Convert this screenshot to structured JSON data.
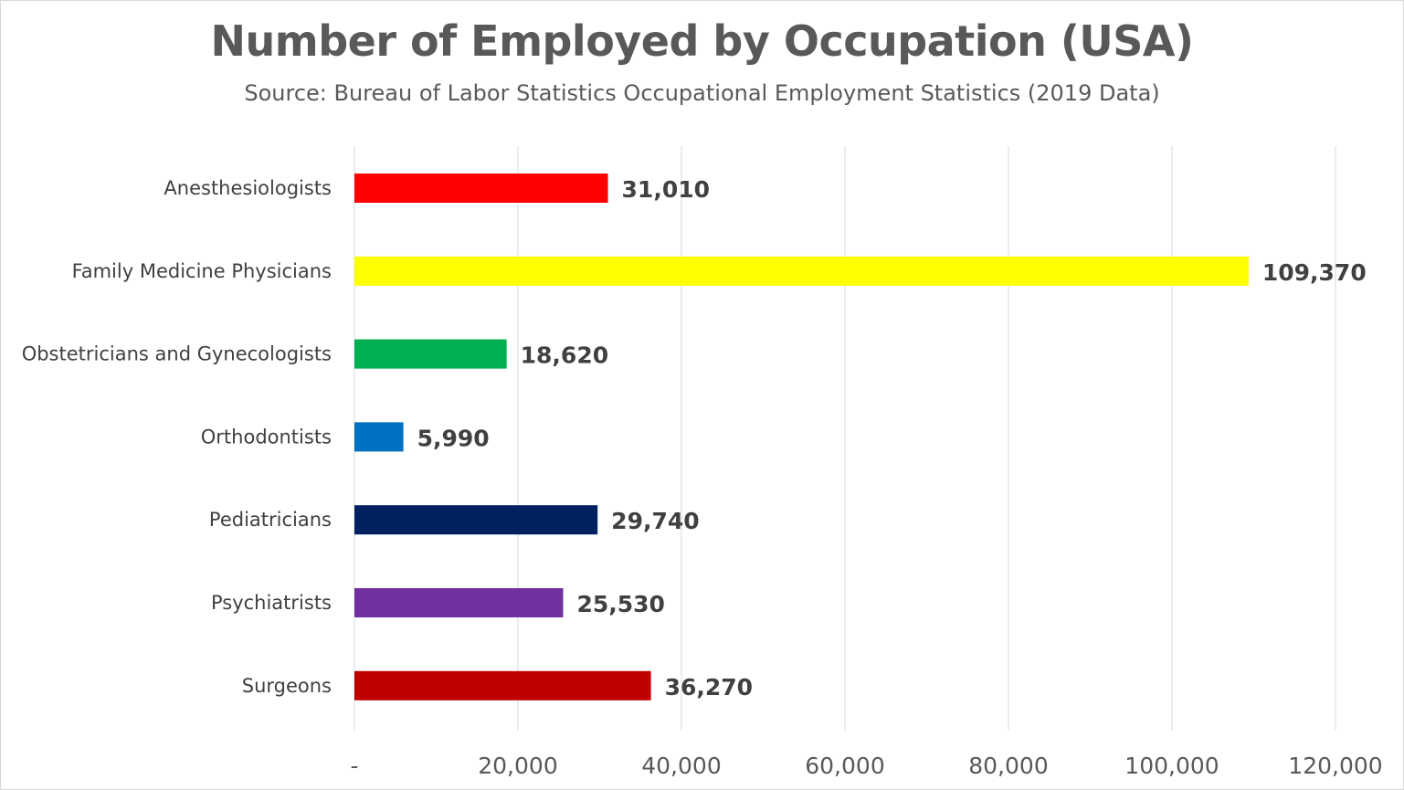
{
  "chart_data": {
    "type": "bar",
    "orientation": "horizontal",
    "title": "Number of Employed by Occupation (USA)",
    "subtitle": "Source: Bureau of Labor Statistics Occupational Employment Statistics (2019 Data)",
    "categories": [
      "Anesthesiologists",
      "Family Medicine Physicians",
      "Obstetricians and Gynecologists",
      "Orthodontists",
      "Pediatricians",
      "Psychiatrists",
      "Surgeons"
    ],
    "values": [
      31010,
      109370,
      18620,
      5990,
      29740,
      25530,
      36270
    ],
    "data_labels": [
      "31,010",
      "109,370",
      "18,620",
      "5,990",
      "29,740",
      "25,530",
      "36,270"
    ],
    "colors": [
      "#FF0000",
      "#FFFF00",
      "#00B050",
      "#0070C0",
      "#002060",
      "#7030A0",
      "#C00000"
    ],
    "xlim": [
      0,
      120000
    ],
    "x_ticks": [
      0,
      20000,
      40000,
      60000,
      80000,
      100000,
      120000
    ],
    "x_tick_labels": [
      "-",
      "20,000",
      "40,000",
      "60,000",
      "80,000",
      "100,000",
      "120,000"
    ],
    "grid": "vertical",
    "legend": "none"
  }
}
